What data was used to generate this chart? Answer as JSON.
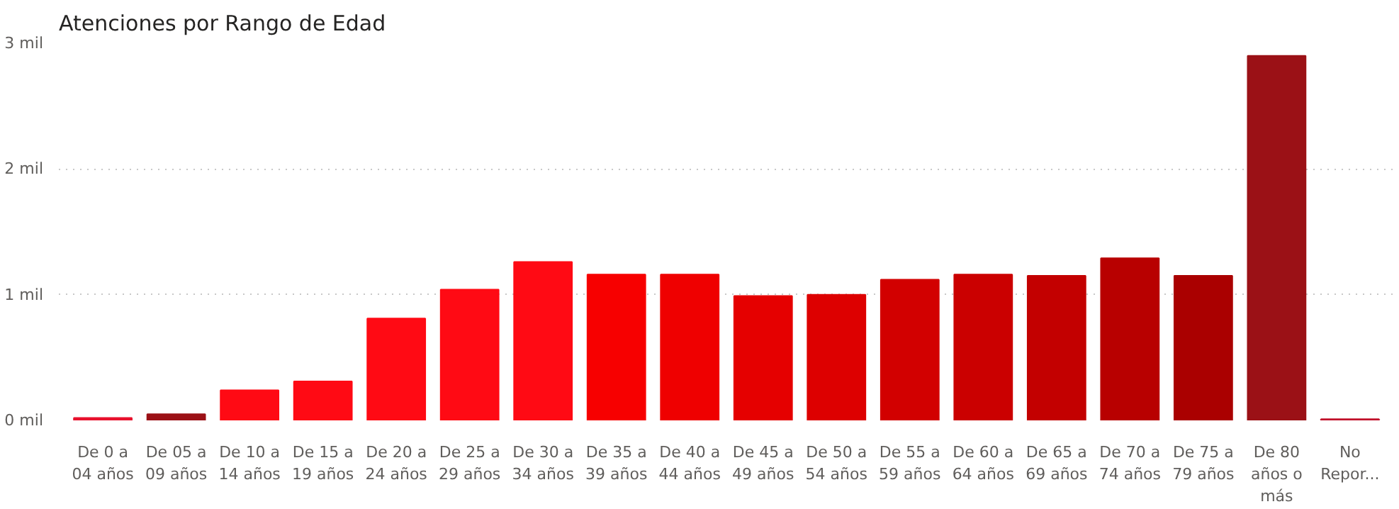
{
  "chart_data": {
    "type": "bar",
    "title": "Atenciones por Rango de Edad",
    "categories": [
      "De 0 a 04 años",
      "De 05 a 09 años",
      "De 10 a 14 años",
      "De 15 a 19 años",
      "De 20 a 24 años",
      "De 25 a 29 años",
      "De 30 a 34 años",
      "De 35 a 39 años",
      "De 40 a 44 años",
      "De 45 a 49 años",
      "De 50 a 54 años",
      "De 55 a 59 años",
      "De 60 a 64 años",
      "De 65 a 69 años",
      "De 70 a 74 años",
      "De 75 a 79 años",
      "De 80 años o más",
      "No Repor..."
    ],
    "values": [
      0.02,
      0.05,
      0.24,
      0.31,
      0.81,
      1.04,
      1.26,
      1.16,
      1.16,
      0.99,
      1.0,
      1.12,
      1.16,
      1.15,
      1.29,
      1.15,
      2.9,
      0.01
    ],
    "colors": [
      "#e8112d",
      "#9b1016",
      "#ff0a14",
      "#ff0a14",
      "#ff0a14",
      "#ff0a14",
      "#ff0a14",
      "#f70000",
      "#ef0000",
      "#e50000",
      "#dd0000",
      "#d20000",
      "#cb0000",
      "#c30000",
      "#b80000",
      "#aa0000",
      "#9b1116",
      "#c0102a"
    ],
    "ylim": [
      0,
      3
    ],
    "yticks": [
      {
        "value": 0,
        "label": "0 mil"
      },
      {
        "value": 1,
        "label": "1 mil"
      },
      {
        "value": 2,
        "label": "2 mil"
      },
      {
        "value": 3,
        "label": "3 mil"
      }
    ],
    "grid": "y"
  }
}
